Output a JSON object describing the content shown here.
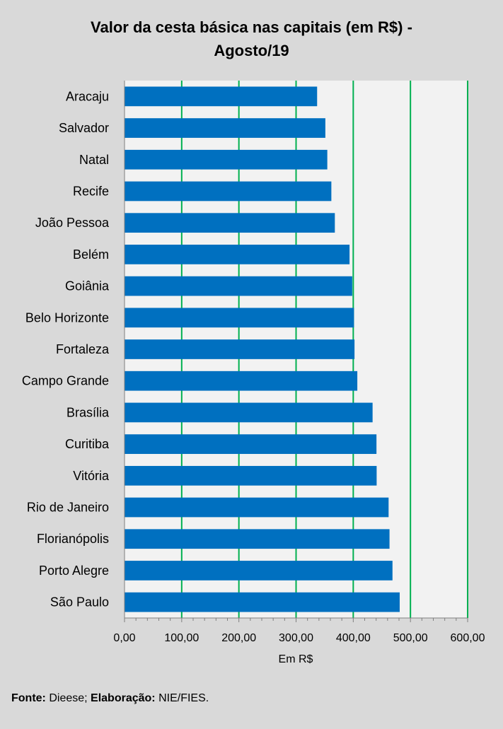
{
  "chart_data": {
    "type": "bar",
    "orientation": "horizontal",
    "title_lines": [
      "Valor da cesta básica nas capitais (em R$) -",
      "Agosto/19"
    ],
    "xlabel": "Em R$",
    "ylabel": "",
    "xlim": [
      0,
      600
    ],
    "xticks": [
      0,
      100,
      200,
      300,
      400,
      500,
      600
    ],
    "xtick_labels": [
      "0,00",
      "100,00",
      "200,00",
      "300,00",
      "400,00",
      "500,00",
      "600,00"
    ],
    "grid": "vertical",
    "colors": {
      "bar": "#0070c0",
      "grid": "#00b050",
      "plot_bg": "#f2f2f2",
      "page_bg": "#d9d9d9"
    },
    "categories": [
      "Aracaju",
      "Salvador",
      "Natal",
      "Recife",
      "João Pessoa",
      "Belém",
      "Goiânia",
      "Belo Horizonte",
      "Fortaleza",
      "Campo Grande",
      "Brasília",
      "Curitiba",
      "Vitória",
      "Rio de Janeiro",
      "Florianópolis",
      "Porto Alegre",
      "São Paulo"
    ],
    "values": [
      336.8,
      351.2,
      354.6,
      361.7,
      367.8,
      393.5,
      398.2,
      401.3,
      402.2,
      407.1,
      433.8,
      440.6,
      440.9,
      461.8,
      463.4,
      468.6,
      481.2
    ]
  },
  "footer": {
    "source_label": "Fonte:",
    "source_value": "Dieese;",
    "credit_label": "Elaboração:",
    "credit_value": "NIE/FIES."
  }
}
